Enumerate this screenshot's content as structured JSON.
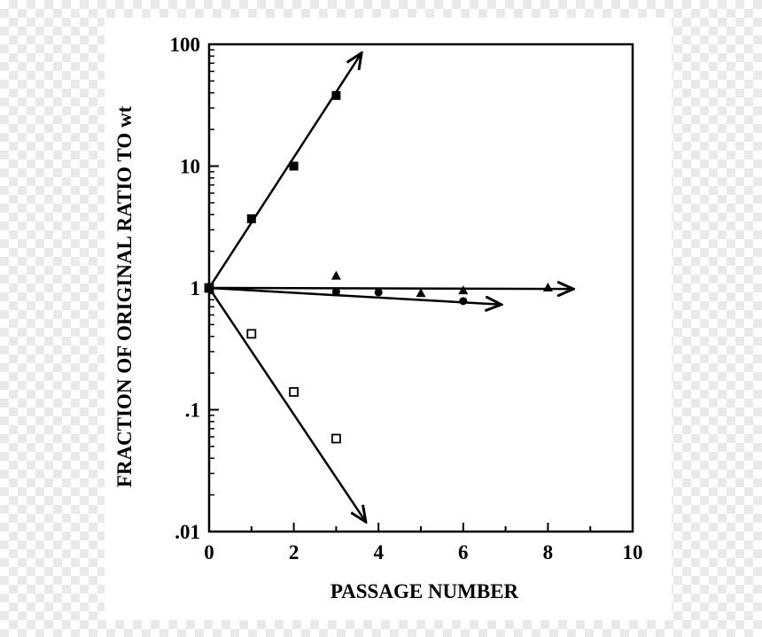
{
  "chart_data": {
    "type": "scatter",
    "title": "",
    "xlabel": "PASSAGE NUMBER",
    "ylabel": "FRACTION OF ORIGINAL RATIO TO wt",
    "xlim": [
      0,
      10
    ],
    "ylim": [
      0.01,
      100
    ],
    "yscale": "log",
    "grid": false,
    "x_ticks": [
      0,
      2,
      4,
      6,
      8,
      10
    ],
    "x_tick_labels": [
      "0",
      "2",
      "4",
      "6",
      "8",
      "10"
    ],
    "y_ticks": [
      0.01,
      0.1,
      1,
      10,
      100
    ],
    "y_tick_labels": [
      ".01",
      ".1",
      "1",
      "10",
      "100"
    ],
    "series": [
      {
        "marker": "filled-square",
        "x": [
          0,
          1,
          2,
          3
        ],
        "y": [
          1,
          3.7,
          10,
          38
        ],
        "trend_end": [
          3.6,
          85
        ]
      },
      {
        "marker": "open-square",
        "x": [
          0,
          1,
          2,
          3
        ],
        "y": [
          1,
          0.42,
          0.14,
          0.058
        ],
        "trend_end": [
          3.7,
          0.012
        ]
      },
      {
        "marker": "filled-circle",
        "x": [
          0,
          3,
          4,
          6
        ],
        "y": [
          1,
          0.93,
          0.92,
          0.78
        ],
        "trend_end": [
          6.9,
          0.73
        ]
      },
      {
        "marker": "filled-triangle",
        "x": [
          0,
          3,
          5,
          6,
          8
        ],
        "y": [
          1,
          1.25,
          0.9,
          0.95,
          1.0
        ],
        "trend_end": [
          8.6,
          0.98
        ]
      }
    ]
  }
}
